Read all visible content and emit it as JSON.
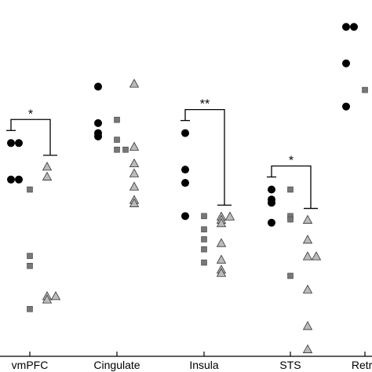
{
  "chart_data": {
    "type": "scatter",
    "title": "",
    "xlabel": "",
    "ylabel": "",
    "categories": [
      "vmPFC",
      "Cingulate",
      "Insula",
      "STS",
      "Retro"
    ],
    "ylim": [
      0,
      100
    ],
    "grid": false,
    "legend": "none",
    "series": [
      {
        "marker": "circle",
        "color": "#000000",
        "points": [
          {
            "category": "vmPFC",
            "y": 64
          },
          {
            "category": "vmPFC",
            "y": 64
          },
          {
            "category": "vmPFC",
            "y": 53
          },
          {
            "category": "vmPFC",
            "y": 53
          },
          {
            "category": "Cingulate",
            "y": 81
          },
          {
            "category": "Cingulate",
            "y": 70
          },
          {
            "category": "Cingulate",
            "y": 67
          },
          {
            "category": "Cingulate",
            "y": 66
          },
          {
            "category": "Insula",
            "y": 67
          },
          {
            "category": "Insula",
            "y": 56
          },
          {
            "category": "Insula",
            "y": 52
          },
          {
            "category": "Insula",
            "y": 42
          },
          {
            "category": "STS",
            "y": 50
          },
          {
            "category": "STS",
            "y": 47
          },
          {
            "category": "STS",
            "y": 46
          },
          {
            "category": "STS",
            "y": 40
          },
          {
            "category": "Retro",
            "y": 99
          },
          {
            "category": "Retro",
            "y": 99
          },
          {
            "category": "Retro",
            "y": 88
          },
          {
            "category": "Retro",
            "y": 75
          }
        ]
      },
      {
        "marker": "square",
        "color": "#777777",
        "points": [
          {
            "category": "vmPFC",
            "y": 50
          },
          {
            "category": "vmPFC",
            "y": 30
          },
          {
            "category": "vmPFC",
            "y": 27
          },
          {
            "category": "vmPFC",
            "y": 14
          },
          {
            "category": "Cingulate",
            "y": 71
          },
          {
            "category": "Cingulate",
            "y": 65
          },
          {
            "category": "Cingulate",
            "y": 62
          },
          {
            "category": "Cingulate",
            "y": 62
          },
          {
            "category": "Insula",
            "y": 42
          },
          {
            "category": "Insula",
            "y": 38
          },
          {
            "category": "Insula",
            "y": 35
          },
          {
            "category": "Insula",
            "y": 32
          },
          {
            "category": "Insula",
            "y": 28
          },
          {
            "category": "STS",
            "y": 50
          },
          {
            "category": "STS",
            "y": 42
          },
          {
            "category": "STS",
            "y": 41
          },
          {
            "category": "STS",
            "y": 24
          },
          {
            "category": "Retro",
            "y": 80
          }
        ]
      },
      {
        "marker": "triangle",
        "color": "#bbbbbb",
        "points": [
          {
            "category": "vmPFC",
            "y": 57
          },
          {
            "category": "vmPFC",
            "y": 54
          },
          {
            "category": "vmPFC",
            "y": 18
          },
          {
            "category": "vmPFC",
            "y": 18
          },
          {
            "category": "vmPFC",
            "y": 17
          },
          {
            "category": "Cingulate",
            "y": 82
          },
          {
            "category": "Cingulate",
            "y": 63
          },
          {
            "category": "Cingulate",
            "y": 58
          },
          {
            "category": "Cingulate",
            "y": 55
          },
          {
            "category": "Cingulate",
            "y": 51
          },
          {
            "category": "Cingulate",
            "y": 47
          },
          {
            "category": "Cingulate",
            "y": 46
          },
          {
            "category": "Insula",
            "y": 42
          },
          {
            "category": "Insula",
            "y": 42
          },
          {
            "category": "Insula",
            "y": 41
          },
          {
            "category": "Insula",
            "y": 40
          },
          {
            "category": "Insula",
            "y": 34
          },
          {
            "category": "Insula",
            "y": 29
          },
          {
            "category": "Insula",
            "y": 26
          },
          {
            "category": "Insula",
            "y": 25
          },
          {
            "category": "STS",
            "y": 41
          },
          {
            "category": "STS",
            "y": 35
          },
          {
            "category": "STS",
            "y": 30
          },
          {
            "category": "STS",
            "y": 30
          },
          {
            "category": "STS",
            "y": 20
          },
          {
            "category": "STS",
            "y": 9
          },
          {
            "category": "STS",
            "y": 2
          }
        ]
      }
    ],
    "annotations": [
      {
        "category": "vmPFC",
        "label": "*"
      },
      {
        "category": "Insula",
        "label": "**"
      },
      {
        "category": "STS",
        "label": "*"
      }
    ]
  }
}
